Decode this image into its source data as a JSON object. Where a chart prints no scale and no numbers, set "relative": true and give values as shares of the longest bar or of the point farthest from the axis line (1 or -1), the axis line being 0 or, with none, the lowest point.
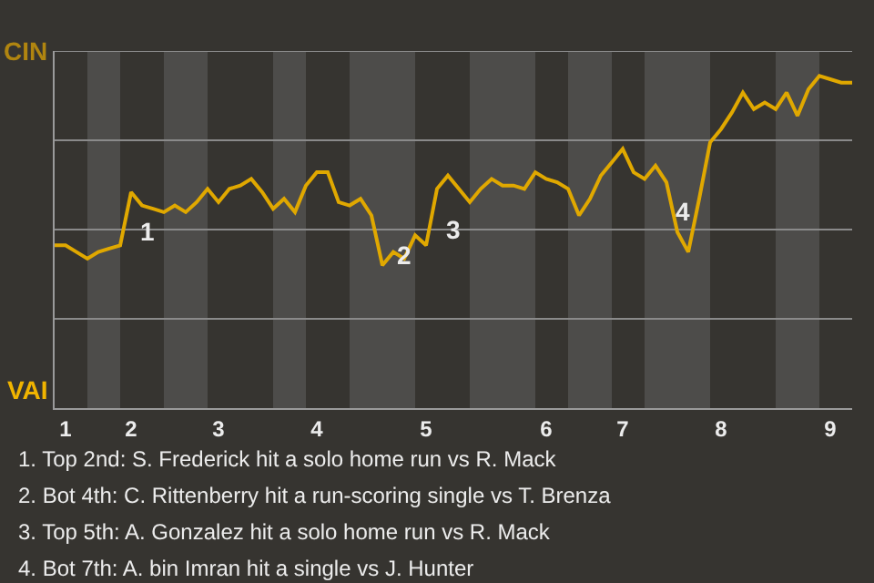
{
  "chart_data": {
    "type": "line",
    "relative": true,
    "categories": [
      null,
      "1",
      null,
      null,
      null,
      null,
      null,
      "2",
      null,
      null,
      null,
      null,
      null,
      null,
      null,
      "3",
      null,
      null,
      null,
      null,
      null,
      null,
      null,
      null,
      "4",
      null,
      null,
      null,
      null,
      null,
      null,
      null,
      null,
      null,
      "5",
      null,
      null,
      null,
      null,
      null,
      null,
      null,
      null,
      null,
      null,
      "6",
      null,
      null,
      null,
      null,
      null,
      null,
      "7",
      null,
      null,
      null,
      null,
      null,
      null,
      null,
      null,
      "8",
      null,
      null,
      null,
      null,
      null,
      null,
      null,
      null,
      null,
      "9",
      null,
      null
    ],
    "series": [
      {
        "color": "#e0a800",
        "values": [
          0.49,
          0.49,
          0.47,
          0.45,
          0.47,
          0.48,
          0.49,
          0.65,
          0.61,
          0.6,
          0.59,
          0.61,
          0.59,
          0.62,
          0.66,
          0.62,
          0.66,
          0.67,
          0.69,
          0.65,
          0.6,
          0.63,
          0.59,
          0.67,
          0.71,
          0.71,
          0.62,
          0.61,
          0.63,
          0.58,
          0.43,
          0.47,
          0.45,
          0.52,
          0.49,
          0.66,
          0.7,
          0.66,
          0.62,
          0.66,
          0.69,
          0.67,
          0.67,
          0.66,
          0.71,
          0.69,
          0.68,
          0.66,
          0.58,
          0.63,
          0.7,
          0.74,
          0.78,
          0.71,
          0.69,
          0.73,
          0.68,
          0.53,
          0.47,
          0.63,
          0.8,
          0.84,
          0.89,
          0.95,
          0.9,
          0.92,
          0.9,
          0.95,
          0.88,
          0.96,
          1,
          0.99,
          0.98,
          0.98
        ]
      }
    ],
    "grid": "y",
    "marker": "none",
    "line_style": "solid",
    "annotations": [
      "CIN",
      "VAI",
      "1",
      "2",
      "3",
      "4",
      "1. Top 2nd: S. Frederick hit a solo home run vs R. Mack",
      "2. Bot 4th: C. Rittenberry hit a run-scoring single vs T. Brenza",
      "3. Top 5th: A. Gonzalez hit a solo home run vs R. Mack",
      "4. Bot 7th: A. bin Imran hit a single vs J. Hunter"
    ]
  }
}
